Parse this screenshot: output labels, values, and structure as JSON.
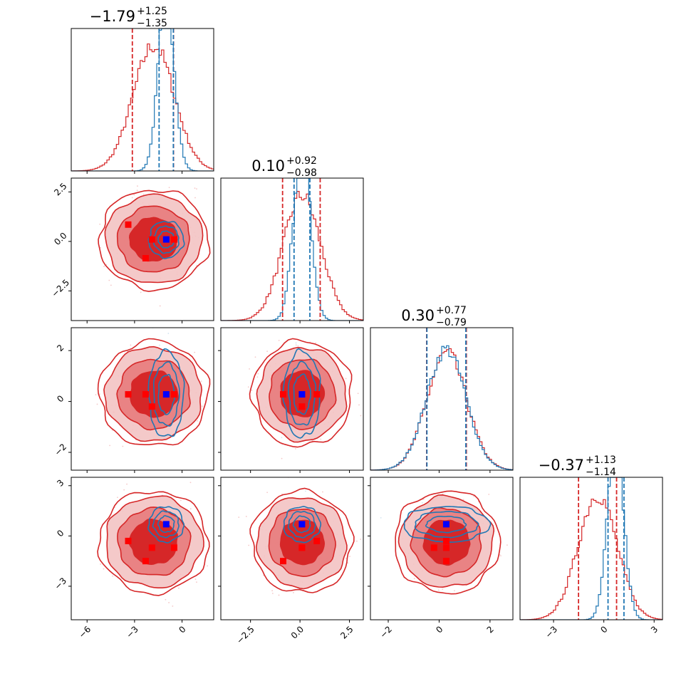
{
  "chart_data": {
    "type": "corner",
    "colors": {
      "red": "#d62728",
      "red_mid": "#e87b7c",
      "red_light": "#f3c3c3",
      "blue": "#1f77b4",
      "marker_red": "#ff0000",
      "marker_blue": "#0000ff"
    },
    "parameters": [
      {
        "range": [
          -7.0,
          2.0
        ],
        "ticks": [
          -6,
          -3,
          0
        ],
        "tick_labels": [
          "−6",
          "−3",
          "0"
        ],
        "title": {
          "median": "−1.79",
          "plus": "+1.25",
          "minus": "−1.35"
        },
        "red": {
          "mean": -1.79,
          "std": 1.3,
          "quantiles": [
            -3.14,
            -0.54
          ]
        },
        "blue": {
          "mean": -1.0,
          "std": 0.5,
          "quantiles": [
            -1.45,
            -0.55
          ]
        },
        "red_markers": [
          -3.4,
          -2.3,
          -1.9,
          -0.5
        ],
        "blue_marker": -1.0
      },
      {
        "range": [
          -4.0,
          3.2
        ],
        "ticks": [
          -2.5,
          0.0,
          2.5
        ],
        "tick_labels": [
          "−2.5",
          "0.0",
          "2.5"
        ],
        "title": {
          "median": "0.10",
          "plus": "+0.92",
          "minus": "−0.98"
        },
        "red": {
          "mean": 0.1,
          "std": 0.95,
          "quantiles": [
            -0.88,
            1.02
          ]
        },
        "blue": {
          "mean": 0.1,
          "std": 0.42,
          "quantiles": [
            -0.3,
            0.5
          ]
        },
        "red_markers": [
          0.85,
          -0.85,
          0.1,
          0.1
        ],
        "blue_marker": 0.1
      },
      {
        "range": [
          -2.7,
          2.9
        ],
        "ticks": [
          -2,
          0,
          2
        ],
        "tick_labels": [
          "−2",
          "0",
          "2"
        ],
        "title": {
          "median": "0.30",
          "plus": "+0.77",
          "minus": "−0.79"
        },
        "red": {
          "mean": 0.3,
          "std": 0.78,
          "quantiles": [
            -0.49,
            1.07
          ]
        },
        "blue": {
          "mean": 0.28,
          "std": 0.77,
          "quantiles": [
            -0.48,
            1.05
          ]
        },
        "red_markers": [
          0.28,
          0.28,
          -0.2,
          0.28
        ],
        "blue_marker": 0.28
      },
      {
        "range": [
          -5.0,
          3.5
        ],
        "ticks": [
          -3,
          0,
          3
        ],
        "tick_labels": [
          "−3",
          "0",
          "3"
        ],
        "title": {
          "median": "−0.37",
          "plus": "+1.13",
          "minus": "−1.14"
        },
        "red": {
          "mean": -0.37,
          "std": 1.15,
          "quantiles": [
            -1.51,
            0.76
          ]
        },
        "blue": {
          "mean": 0.7,
          "std": 0.48,
          "quantiles": [
            0.25,
            1.2
          ]
        },
        "red_markers": [
          -0.3,
          -1.5,
          -0.7,
          -0.7
        ],
        "blue_marker": 0.7
      }
    ]
  }
}
